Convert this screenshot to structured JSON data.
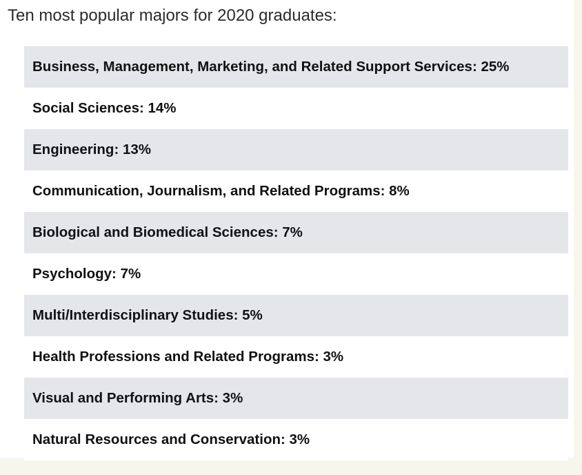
{
  "heading": "Ten most popular majors for 2020 graduates:",
  "majors": [
    {
      "label": "Business, Management, Marketing, and Related Support Services: 25%"
    },
    {
      "label": "Social Sciences: 14%"
    },
    {
      "label": "Engineering: 13%"
    },
    {
      "label": "Communication, Journalism, and Related Programs: 8%"
    },
    {
      "label": "Biological and Biomedical Sciences: 7%"
    },
    {
      "label": "Psychology: 7%"
    },
    {
      "label": "Multi/Interdisciplinary Studies: 5%"
    },
    {
      "label": "Health Professions and Related Programs: 3%"
    },
    {
      "label": "Visual and Performing Arts: 3%"
    },
    {
      "label": "Natural Resources and Conservation: 3%"
    }
  ]
}
